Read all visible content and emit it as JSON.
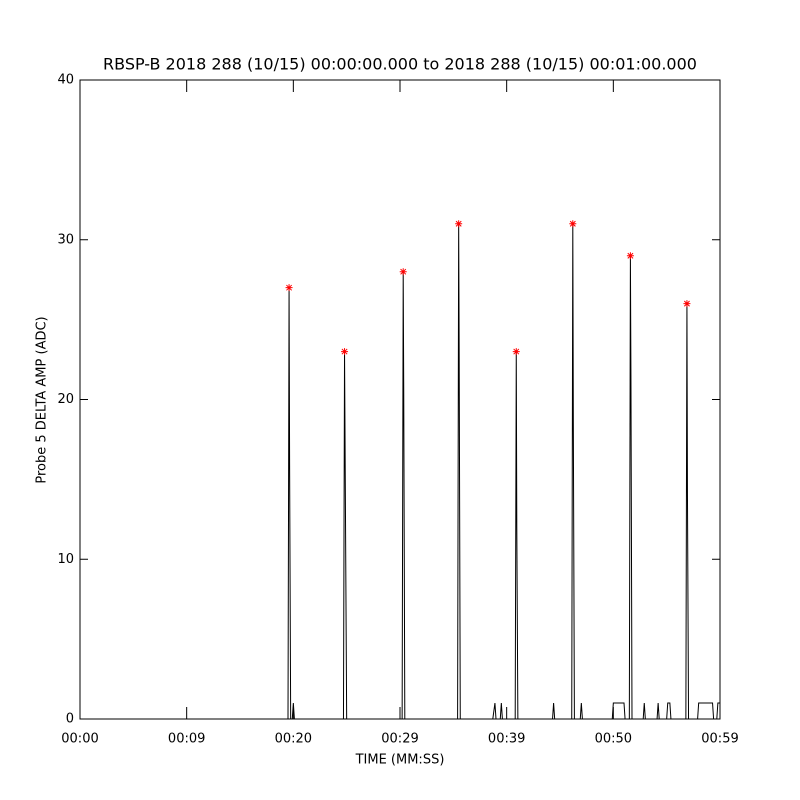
{
  "chart_data": {
    "type": "line",
    "title": "RBSP-B 2018 288 (10/15) 00:00:00.000 to 2018 288 (10/15) 00:01:00.000",
    "x_label": "TIME (MM:SS)",
    "y_label": "Probe 5 DELTA AMP (ADC)",
    "xlim": [
      0,
      60
    ],
    "ylim": [
      0,
      40
    ],
    "xticks": [
      {
        "value": 0,
        "label": "00:00"
      },
      {
        "value": 10,
        "label": "00:09"
      },
      {
        "value": 20,
        "label": "00:20"
      },
      {
        "value": 30,
        "label": "00:29"
      },
      {
        "value": 40,
        "label": "00:39"
      },
      {
        "value": 50,
        "label": "00:50"
      },
      {
        "value": 60,
        "label": "00:59"
      }
    ],
    "yticks": [
      0,
      10,
      20,
      30,
      40
    ],
    "line": {
      "color": "#000000",
      "x": [
        0,
        19.5,
        19.6,
        19.65,
        19.75,
        19.9,
        20.0,
        20.1,
        24.7,
        24.8,
        24.9,
        25.0,
        30.2,
        30.3,
        30.35,
        30.45,
        35.4,
        35.5,
        35.55,
        35.65,
        40.8,
        40.9,
        40.95,
        41.05,
        46.1,
        46.2,
        46.25,
        46.35,
        51.5,
        51.6,
        51.65,
        51.75,
        56.8,
        56.9,
        56.95,
        57.05,
        38.8
      ],
      "values": [
        0,
        0,
        27,
        16,
        0,
        0,
        1,
        0,
        0,
        23,
        11.5,
        0,
        0,
        28,
        20.5,
        0,
        0,
        31,
        22.5,
        0,
        0,
        23,
        12,
        0,
        0,
        31,
        18.5,
        0,
        0,
        29,
        21.5,
        0,
        0,
        26,
        14,
        0,
        null
      ]
    },
    "line_tail": {
      "color": "#000000",
      "x": [
        38.7,
        38.9,
        39.0,
        39.4,
        39.5,
        39.6,
        44.3,
        44.4,
        44.5,
        46.9,
        47.0,
        47.1,
        49.9,
        50.0,
        51.0,
        51.1,
        52.8,
        52.9,
        53.0,
        54.1,
        54.2,
        54.3,
        55.0,
        55.1,
        55.3,
        55.4,
        57.9,
        58.0,
        59.3,
        59.4,
        59.7,
        59.8,
        60.0
      ],
      "values": [
        0,
        1,
        0,
        0,
        1,
        0,
        0,
        1,
        0,
        0,
        1,
        0,
        0,
        1,
        1,
        0,
        0,
        1,
        0,
        0,
        1,
        0,
        0,
        1,
        1,
        0,
        0,
        1,
        1,
        0,
        0,
        1,
        1
      ]
    },
    "peaks": {
      "color": "#ff0000",
      "x": [
        19.6,
        24.8,
        30.3,
        35.5,
        40.9,
        46.2,
        51.6,
        56.9
      ],
      "values": [
        27,
        23,
        28,
        31,
        23,
        31,
        29,
        26
      ]
    }
  }
}
